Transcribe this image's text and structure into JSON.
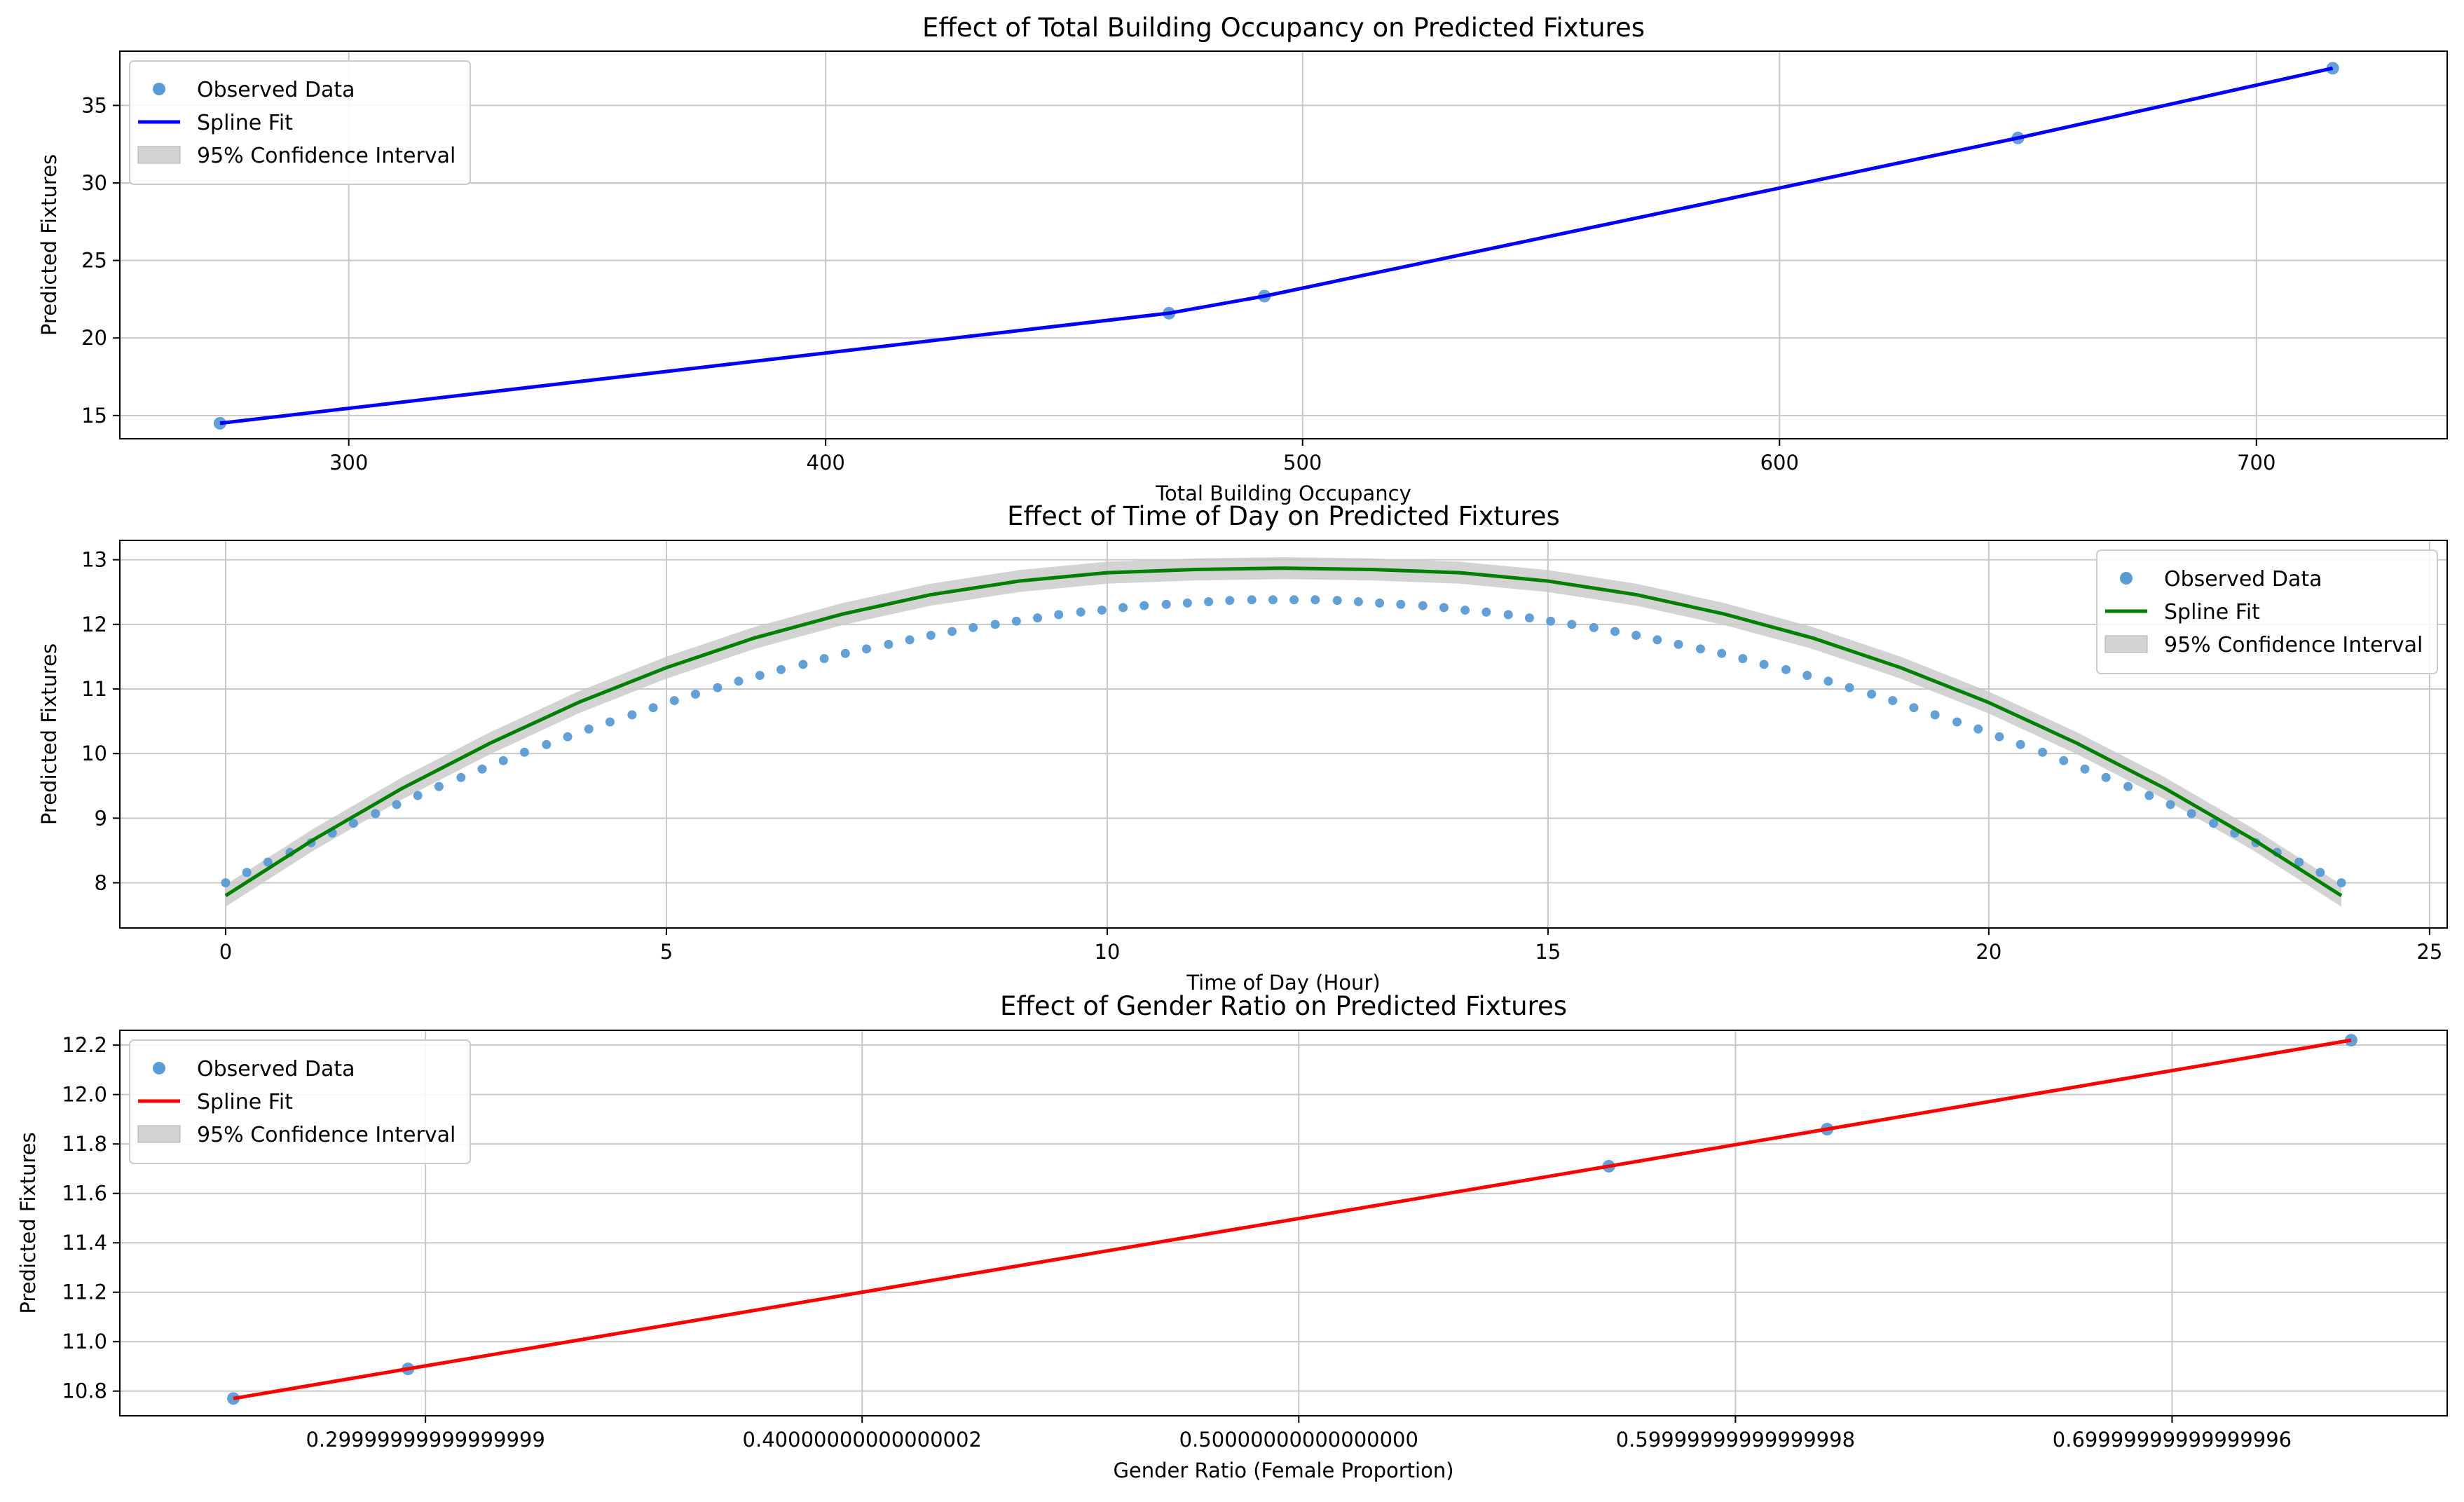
{
  "colors": {
    "observed": "#5b9bd5",
    "band": "#c8c8c8",
    "grid": "#c8c8c8",
    "fit": [
      "#0000ff",
      "#008000",
      "#ff0000"
    ]
  },
  "chart_data": [
    {
      "type": "line",
      "title": "Effect of Total Building Occupancy on Predicted Fixtures",
      "xlabel": "Total Building Occupancy",
      "ylabel": "Predicted Fixtures",
      "xlim": [
        252,
        740
      ],
      "ylim": [
        13.5,
        38.5
      ],
      "xticks": [
        300,
        400,
        500,
        600,
        700
      ],
      "yticks": [
        15,
        20,
        25,
        30,
        35
      ],
      "grid": true,
      "legend_position": "top-left",
      "legend": [
        "Observed Data",
        "Spline Fit",
        "95% Confidence Interval"
      ],
      "fit_color": "#0000ff",
      "observed": {
        "x": [
          273,
          472,
          492,
          650,
          716
        ],
        "y": [
          14.5,
          21.6,
          22.7,
          32.9,
          37.4
        ]
      },
      "fit": {
        "x": [
          273,
          472,
          492,
          650,
          716
        ],
        "y": [
          14.5,
          21.6,
          22.7,
          32.9,
          37.4
        ]
      },
      "ci_half_width": 0.1
    },
    {
      "type": "line",
      "title": "Effect of Time of Day on Predicted Fixtures",
      "xlabel": "Time of Day (Hour)",
      "ylabel": "Predicted Fixtures",
      "xlim": [
        -1.2,
        25.2
      ],
      "ylim": [
        7.3,
        13.3
      ],
      "xticks": [
        0,
        5,
        10,
        15,
        20,
        25
      ],
      "yticks": [
        8,
        9,
        10,
        11,
        12,
        13
      ],
      "grid": true,
      "legend_position": "top-right",
      "legend": [
        "Observed Data",
        "Spline Fit",
        "95% Confidence Interval"
      ],
      "fit_color": "#008000",
      "observed": {
        "x": [
          0,
          0.24,
          0.48,
          0.73,
          0.97,
          1.21,
          1.45,
          1.7,
          1.94,
          2.18,
          2.42,
          2.67,
          2.91,
          3.15,
          3.39,
          3.64,
          3.88,
          4.12,
          4.36,
          4.61,
          4.85,
          5.09,
          5.33,
          5.58,
          5.82,
          6.06,
          6.3,
          6.55,
          6.79,
          7.03,
          7.27,
          7.52,
          7.76,
          8,
          8.24,
          8.48,
          8.73,
          8.97,
          9.21,
          9.45,
          9.7,
          9.94,
          10.18,
          10.42,
          10.67,
          10.91,
          11.15,
          11.39,
          11.64,
          11.88,
          12.12,
          12.36,
          12.61,
          12.85,
          13.09,
          13.33,
          13.58,
          13.82,
          14.06,
          14.3,
          14.55,
          14.79,
          15.03,
          15.27,
          15.52,
          15.76,
          16,
          16.24,
          16.48,
          16.73,
          16.97,
          17.21,
          17.45,
          17.7,
          17.94,
          18.18,
          18.42,
          18.67,
          18.91,
          19.15,
          19.39,
          19.64,
          19.88,
          20.12,
          20.36,
          20.61,
          20.85,
          21.09,
          21.33,
          21.58,
          21.82,
          22.06,
          22.3,
          22.55,
          22.79,
          23.03,
          23.27,
          23.52,
          23.76,
          24
        ],
        "y": [
          8.0,
          8.16,
          8.32,
          8.47,
          8.62,
          8.77,
          8.92,
          9.07,
          9.21,
          9.35,
          9.49,
          9.63,
          9.76,
          9.89,
          10.02,
          10.14,
          10.26,
          10.38,
          10.49,
          10.6,
          10.71,
          10.82,
          10.92,
          11.02,
          11.12,
          11.21,
          11.3,
          11.38,
          11.47,
          11.55,
          11.62,
          11.69,
          11.76,
          11.83,
          11.89,
          11.95,
          12.0,
          12.05,
          12.1,
          12.15,
          12.19,
          12.22,
          12.26,
          12.29,
          12.31,
          12.33,
          12.35,
          12.37,
          12.38,
          12.38,
          12.38,
          12.38,
          12.37,
          12.35,
          12.33,
          12.31,
          12.29,
          12.26,
          12.22,
          12.19,
          12.15,
          12.1,
          12.05,
          12.0,
          11.95,
          11.89,
          11.83,
          11.76,
          11.69,
          11.62,
          11.55,
          11.47,
          11.38,
          11.3,
          11.21,
          11.12,
          11.02,
          10.92,
          10.82,
          10.71,
          10.6,
          10.49,
          10.38,
          10.26,
          10.14,
          10.02,
          9.89,
          9.76,
          9.63,
          9.49,
          9.35,
          9.21,
          9.07,
          8.92,
          8.77,
          8.62,
          8.47,
          8.32,
          8.16,
          8.0
        ]
      },
      "fit": {
        "x": [
          0,
          1,
          2,
          3,
          4,
          5,
          6,
          7,
          8,
          9,
          10,
          11,
          12,
          13,
          14,
          15,
          16,
          17,
          18,
          19,
          20,
          21,
          22,
          23,
          24
        ],
        "y": [
          7.8,
          8.67,
          9.46,
          10.16,
          10.79,
          11.33,
          11.79,
          12.16,
          12.46,
          12.67,
          12.8,
          12.85,
          12.87,
          12.85,
          12.8,
          12.67,
          12.46,
          12.16,
          11.79,
          11.33,
          10.79,
          10.16,
          9.46,
          8.67,
          7.8
        ]
      },
      "ci_half_width": 0.17
    },
    {
      "type": "line",
      "title": "Effect of Gender Ratio on Predicted Fixtures",
      "xlabel": "Gender Ratio (Female Proportion)",
      "ylabel": "Predicted Fixtures",
      "xlim": [
        0.23,
        0.763
      ],
      "ylim": [
        10.7,
        12.26
      ],
      "xticks": [
        0.3,
        0.4,
        0.5,
        0.6,
        0.7
      ],
      "yticks": [
        10.8,
        11.0,
        11.2,
        11.4,
        11.6,
        11.8,
        12.0,
        12.2
      ],
      "grid": true,
      "legend_position": "top-left",
      "legend": [
        "Observed Data",
        "Spline Fit",
        "95% Confidence Interval"
      ],
      "fit_color": "#ff0000",
      "observed": {
        "x": [
          0.256,
          0.296,
          0.571,
          0.621,
          0.741
        ],
        "y": [
          10.77,
          10.89,
          11.71,
          11.86,
          12.22
        ]
      },
      "fit": {
        "x": [
          0.256,
          0.296,
          0.571,
          0.621,
          0.741
        ],
        "y": [
          10.77,
          10.89,
          11.71,
          11.86,
          12.22
        ]
      },
      "ci_half_width": 0.003
    }
  ]
}
